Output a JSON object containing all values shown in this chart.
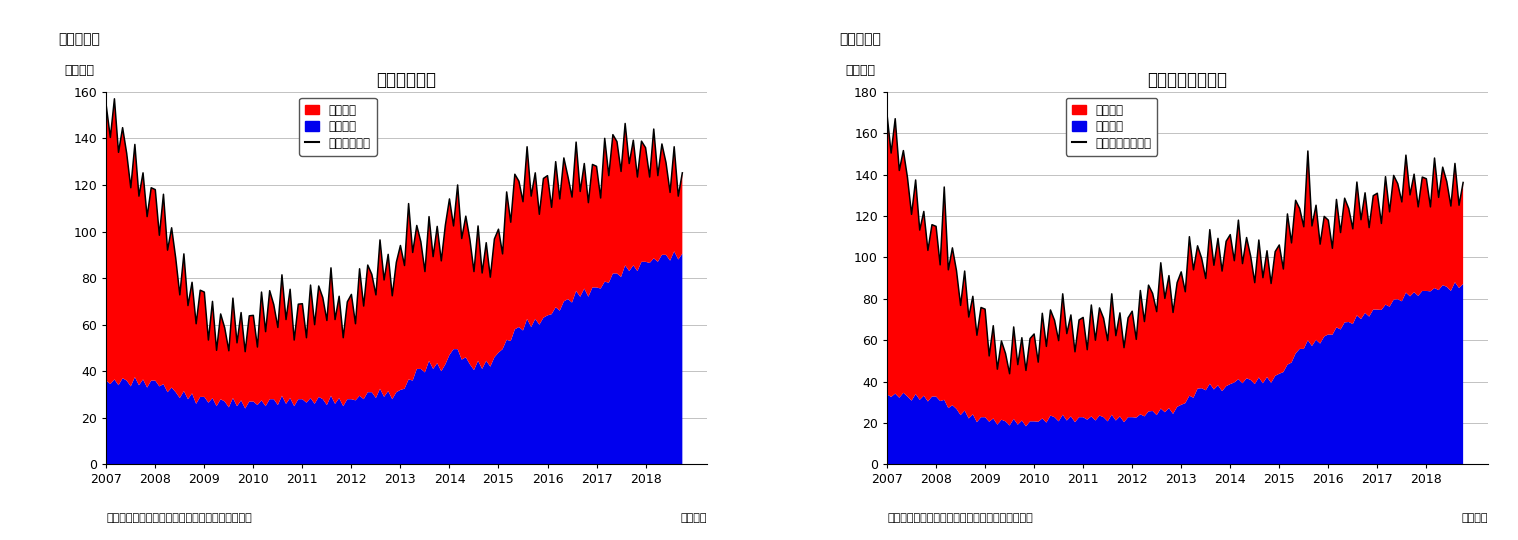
{
  "chart1": {
    "title": "住宅着工件数",
    "super_title": "（図表１）",
    "ylabel": "（万件）",
    "ylim": [
      0,
      160
    ],
    "yticks": [
      0,
      20,
      40,
      60,
      80,
      100,
      120,
      140,
      160
    ],
    "legend_line": "住宅着工件数",
    "legend_red": "集合住宅",
    "legend_blue": "一戸建て",
    "footer_left": "（資料）センサス局よりニッセイ基礎研究所作成",
    "footer_right": "（月次）"
  },
  "chart2": {
    "title": "住宅着工許可件数",
    "super_title": "（図表２）",
    "ylabel": "（万件）",
    "ylim": [
      0,
      180
    ],
    "yticks": [
      0,
      20,
      40,
      60,
      80,
      100,
      120,
      140,
      160,
      180
    ],
    "legend_line": "住宅建築許可件数",
    "legend_red": "集合住宅",
    "legend_blue": "一戸建て",
    "footer_left": "（資料）センサス局よりニッセイ基礎研究所作成",
    "footer_right": "（月次）"
  },
  "colors": {
    "red": "#FF0000",
    "blue": "#0000EE",
    "black": "#000000",
    "background": "#FFFFFF",
    "grid": "#AAAAAA"
  },
  "xtick_labels": [
    "2007",
    "2008",
    "2009",
    "2010",
    "2011",
    "2012",
    "2013",
    "2014",
    "2015",
    "2016",
    "2017",
    "2018"
  ]
}
